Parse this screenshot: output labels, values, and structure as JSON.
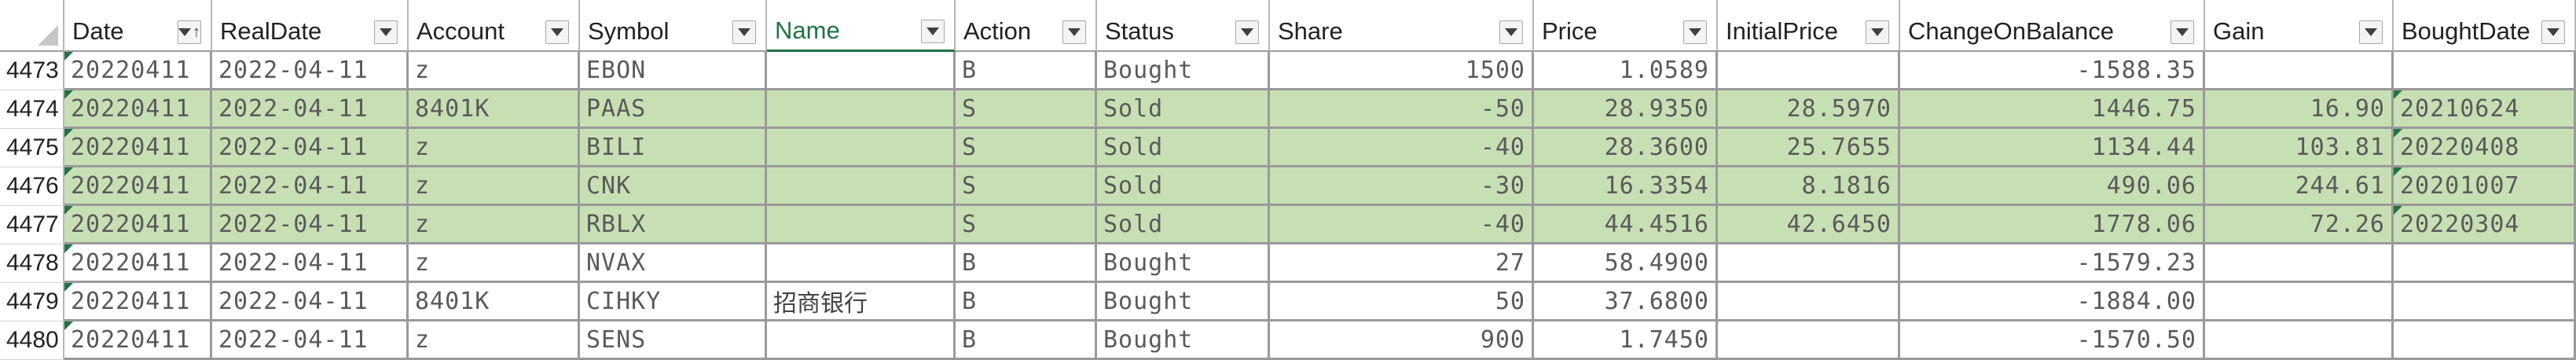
{
  "headers": [
    {
      "key": "date",
      "label": "Date",
      "sorted": true
    },
    {
      "key": "realdate",
      "label": "RealDate"
    },
    {
      "key": "account",
      "label": "Account"
    },
    {
      "key": "symbol",
      "label": "Symbol"
    },
    {
      "key": "name",
      "label": "Name",
      "active": true
    },
    {
      "key": "action",
      "label": "Action"
    },
    {
      "key": "status",
      "label": "Status"
    },
    {
      "key": "share",
      "label": "Share"
    },
    {
      "key": "price",
      "label": "Price"
    },
    {
      "key": "initialprice",
      "label": "InitialPrice"
    },
    {
      "key": "changeonbalance",
      "label": "ChangeOnBalance"
    },
    {
      "key": "gain",
      "label": "Gain"
    },
    {
      "key": "boughtdate",
      "label": "BoughtDate"
    }
  ],
  "rows": [
    {
      "num": "4473",
      "date": "20220411",
      "realdate": "2022-04-11",
      "account": "z",
      "symbol": "EBON",
      "name": "",
      "action": "B",
      "status": "Bought",
      "share": "1500",
      "price": "1.0589",
      "initialprice": "",
      "changeonbalance": "-1588.35",
      "gain": "",
      "boughtdate": "",
      "highlight": false
    },
    {
      "num": "4474",
      "date": "20220411",
      "realdate": "2022-04-11",
      "account": "8401K",
      "symbol": "PAAS",
      "name": "",
      "action": "S",
      "status": "Sold",
      "share": "-50",
      "price": "28.9350",
      "initialprice": "28.5970",
      "changeonbalance": "1446.75",
      "gain": "16.90",
      "boughtdate": "20210624",
      "highlight": true
    },
    {
      "num": "4475",
      "date": "20220411",
      "realdate": "2022-04-11",
      "account": "z",
      "symbol": "BILI",
      "name": "",
      "action": "S",
      "status": "Sold",
      "share": "-40",
      "price": "28.3600",
      "initialprice": "25.7655",
      "changeonbalance": "1134.44",
      "gain": "103.81",
      "boughtdate": "20220408",
      "highlight": true
    },
    {
      "num": "4476",
      "date": "20220411",
      "realdate": "2022-04-11",
      "account": "z",
      "symbol": "CNK",
      "name": "",
      "action": "S",
      "status": "Sold",
      "share": "-30",
      "price": "16.3354",
      "initialprice": "8.1816",
      "changeonbalance": "490.06",
      "gain": "244.61",
      "boughtdate": "20201007",
      "highlight": true
    },
    {
      "num": "4477",
      "date": "20220411",
      "realdate": "2022-04-11",
      "account": "z",
      "symbol": "RBLX",
      "name": "",
      "action": "S",
      "status": "Sold",
      "share": "-40",
      "price": "44.4516",
      "initialprice": "42.6450",
      "changeonbalance": "1778.06",
      "gain": "72.26",
      "boughtdate": "20220304",
      "highlight": true
    },
    {
      "num": "4478",
      "date": "20220411",
      "realdate": "2022-04-11",
      "account": "z",
      "symbol": "NVAX",
      "name": "",
      "action": "B",
      "status": "Bought",
      "share": "27",
      "price": "58.4900",
      "initialprice": "",
      "changeonbalance": "-1579.23",
      "gain": "",
      "boughtdate": "",
      "highlight": false
    },
    {
      "num": "4479",
      "date": "20220411",
      "realdate": "2022-04-11",
      "account": "8401K",
      "symbol": "CIHKY",
      "name": "招商银行",
      "action": "B",
      "status": "Bought",
      "share": "50",
      "price": "37.6800",
      "initialprice": "",
      "changeonbalance": "-1884.00",
      "gain": "",
      "boughtdate": "",
      "highlight": false
    },
    {
      "num": "4480",
      "date": "20220411",
      "realdate": "2022-04-11",
      "account": "z",
      "symbol": "SENS",
      "name": "",
      "action": "B",
      "status": "Bought",
      "share": "900",
      "price": "1.7450",
      "initialprice": "",
      "changeonbalance": "-1570.50",
      "gain": "",
      "boughtdate": "",
      "highlight": false
    }
  ],
  "colors": {
    "sold_fill": "#c6e0b4",
    "selected_header": "#217346"
  },
  "icons": {
    "filter": "filter-dropdown-icon",
    "sort": "sort-ascending-icon",
    "select_all": "select-all-triangle-icon"
  }
}
